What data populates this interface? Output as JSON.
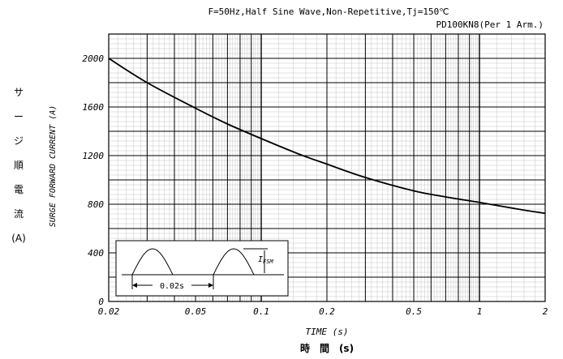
{
  "chart_data": {
    "type": "line",
    "title": "F=50Hz,Half Sine Wave,Non-Repetitive,Tj=150℃",
    "subtitle": "PD100KN8(Per 1 Arm.)",
    "xlabel": "TIME (s)",
    "xlabel_jp": "時　間　(s)",
    "ylabel": "SURGE FORWARD CURRENT (A)",
    "ylabel_jp": [
      "サ",
      "ー",
      "ジ",
      "順",
      "電",
      "流",
      "(A)"
    ],
    "x_scale": "log",
    "xlim": [
      0.02,
      2
    ],
    "ylim": [
      0,
      2200
    ],
    "grid": true,
    "x_ticks": [
      0.02,
      0.05,
      0.1,
      0.2,
      0.5,
      1,
      2
    ],
    "x_tick_labels": [
      "0.02",
      "0.05",
      "0.1",
      "0.2",
      "0.5",
      "1",
      "2"
    ],
    "y_ticks": [
      0,
      400,
      800,
      1200,
      1600,
      2000
    ],
    "y_tick_labels": [
      "0",
      "400",
      "800",
      "1200",
      "1600",
      "2000"
    ],
    "series": [
      {
        "x": [
          0.02,
          0.03,
          0.05,
          0.07,
          0.1,
          0.15,
          0.2,
          0.3,
          0.5,
          0.7,
          1.0,
          1.5,
          2.0
        ],
        "y": [
          2000,
          1800,
          1590,
          1460,
          1340,
          1210,
          1130,
          1020,
          910,
          860,
          815,
          760,
          725
        ]
      }
    ],
    "inset": {
      "label": "0.02s",
      "ifsm_label": "I",
      "ifsm_sub": "FSM"
    }
  }
}
